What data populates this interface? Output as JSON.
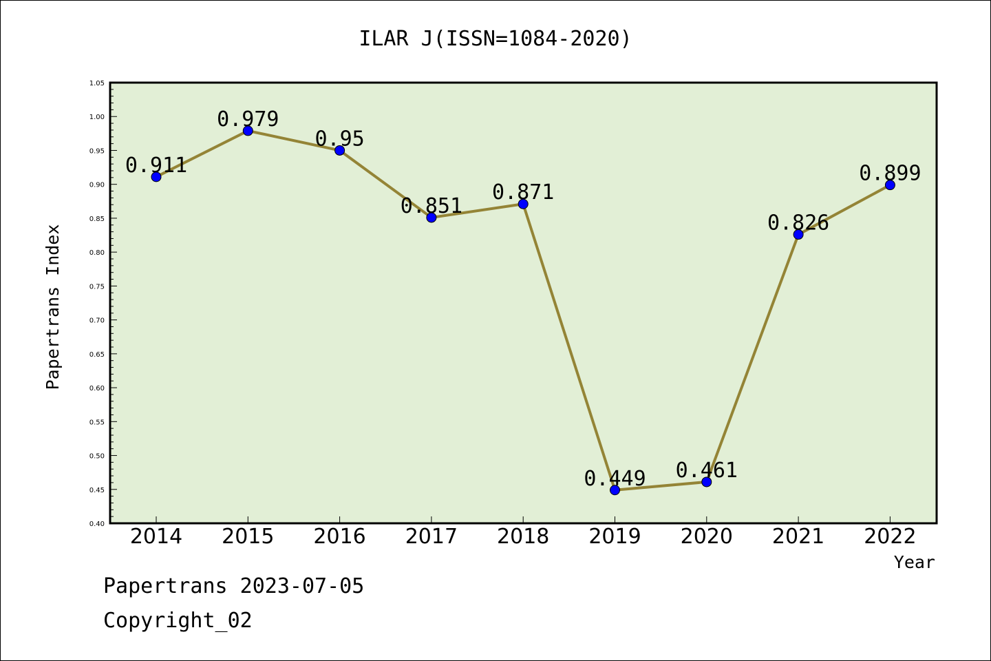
{
  "chart_data": {
    "type": "line",
    "title": "ILAR J(ISSN=1084-2020)",
    "xlabel": "Year",
    "ylabel": "Papertrans Index",
    "categories": [
      "2014",
      "2015",
      "2016",
      "2017",
      "2018",
      "2019",
      "2020",
      "2021",
      "2022"
    ],
    "series": [
      {
        "values": [
          0.911,
          0.979,
          0.95,
          0.851,
          0.871,
          0.449,
          0.461,
          0.826,
          0.899
        ],
        "data_labels": [
          "0.911",
          "0.979",
          "0.95",
          "0.851",
          "0.871",
          "0.449",
          "0.461",
          "0.826",
          "0.899"
        ]
      }
    ],
    "ylim": [
      0.4,
      1.05
    ],
    "yticks": [
      "0.40",
      "0.45",
      "0.50",
      "0.55",
      "0.60",
      "0.65",
      "0.70",
      "0.75",
      "0.80",
      "0.85",
      "0.90",
      "0.95",
      "1.00",
      "1.05"
    ],
    "grid": false,
    "colors": {
      "plot_background": "#e2efd6",
      "line": "#948436",
      "marker": "#0000ff",
      "axis": "#000000"
    }
  },
  "footer": {
    "line1": "Papertrans 2023-07-05",
    "line2": "Copyright_02"
  }
}
